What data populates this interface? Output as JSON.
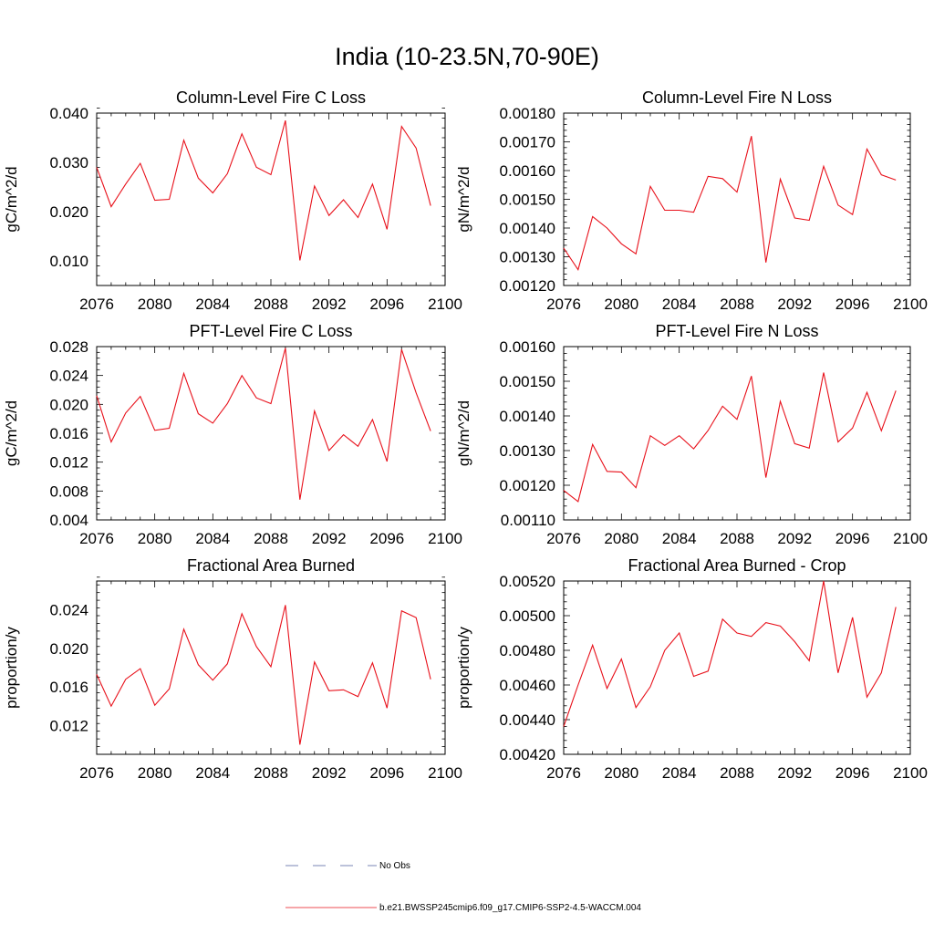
{
  "title": "India (10-23.5N,70-90E)",
  "panels": [
    {
      "title": "Column-Level Fire C Loss",
      "ylabel": "gC/m^2/d",
      "xlim": [
        2076,
        2100
      ],
      "ylim": [
        0.005,
        0.04
      ],
      "xticks": [
        "2076",
        "2080",
        "2084",
        "2088",
        "2092",
        "2096",
        "2100"
      ],
      "yticks": [
        "0.010",
        "0.020",
        "0.030",
        "0.040"
      ],
      "ytick_values": [
        0.01,
        0.02,
        0.03,
        0.04
      ]
    },
    {
      "title": "Column-Level Fire N Loss",
      "ylabel": "gN/m^2/d",
      "xlim": [
        2076,
        2100
      ],
      "ylim": [
        0.0012,
        0.0018
      ],
      "xticks": [
        "2076",
        "2080",
        "2084",
        "2088",
        "2092",
        "2096",
        "2100"
      ],
      "yticks": [
        "0.00120",
        "0.00130",
        "0.00140",
        "0.00150",
        "0.00160",
        "0.00170",
        "0.00180"
      ],
      "ytick_values": [
        0.0012,
        0.0013,
        0.0014,
        0.0015,
        0.0016,
        0.0017,
        0.0018
      ]
    },
    {
      "title": "PFT-Level Fire C Loss",
      "ylabel": "gC/m^2/d",
      "xlim": [
        2076,
        2100
      ],
      "ylim": [
        0.004,
        0.028
      ],
      "xticks": [
        "2076",
        "2080",
        "2084",
        "2088",
        "2092",
        "2096",
        "2100"
      ],
      "yticks": [
        "0.004",
        "0.008",
        "0.012",
        "0.016",
        "0.020",
        "0.024",
        "0.028"
      ],
      "ytick_values": [
        0.004,
        0.008,
        0.012,
        0.016,
        0.02,
        0.024,
        0.028
      ]
    },
    {
      "title": "PFT-Level Fire N Loss",
      "ylabel": "gN/m^2/d",
      "xlim": [
        2076,
        2100
      ],
      "ylim": [
        0.0011,
        0.0016
      ],
      "xticks": [
        "2076",
        "2080",
        "2084",
        "2088",
        "2092",
        "2096",
        "2100"
      ],
      "yticks": [
        "0.00110",
        "0.00120",
        "0.00130",
        "0.00140",
        "0.00150",
        "0.00160"
      ],
      "ytick_values": [
        0.0011,
        0.0012,
        0.0013,
        0.0014,
        0.0015,
        0.0016
      ]
    },
    {
      "title": "Fractional Area Burned",
      "ylabel": "proportion/y",
      "xlim": [
        2076,
        2100
      ],
      "ylim": [
        0.009,
        0.027
      ],
      "xticks": [
        "2076",
        "2080",
        "2084",
        "2088",
        "2092",
        "2096",
        "2100"
      ],
      "yticks": [
        "0.012",
        "0.016",
        "0.020",
        "0.024"
      ],
      "ytick_values": [
        0.012,
        0.016,
        0.02,
        0.024
      ]
    },
    {
      "title": "Fractional Area Burned - Crop",
      "ylabel": "proportion/y",
      "xlim": [
        2076,
        2100
      ],
      "ylim": [
        0.0042,
        0.0052
      ],
      "xticks": [
        "2076",
        "2080",
        "2084",
        "2088",
        "2092",
        "2096",
        "2100"
      ],
      "yticks": [
        "0.00420",
        "0.00440",
        "0.00460",
        "0.00480",
        "0.00500",
        "0.00520"
      ],
      "ytick_values": [
        0.0042,
        0.0044,
        0.0046,
        0.0048,
        0.005,
        0.0052
      ]
    }
  ],
  "legend": {
    "obs_label": "No Obs",
    "model_label": "b.e21.BWSSP245cmip6.f09_g17.CMIP6-SSP2-4.5-WACCM.004"
  },
  "colors": {
    "model": "#e8101a",
    "obs": "#4f5f9f",
    "axis": "#000000"
  },
  "chart_data": [
    {
      "type": "line",
      "title": "Column-Level Fire C Loss",
      "ylabel": "gC/m^2/d",
      "x": [
        2076,
        2077,
        2078,
        2079,
        2080,
        2081,
        2082,
        2083,
        2084,
        2085,
        2086,
        2087,
        2088,
        2089,
        2090,
        2091,
        2092,
        2093,
        2094,
        2095,
        2096,
        2097,
        2098,
        2099
      ],
      "series": [
        {
          "name": "b.e21.BWSSP245cmip6.f09_g17.CMIP6-SSP2-4.5-WACCM.004",
          "values": [
            0.029,
            0.021,
            0.0256,
            0.0298,
            0.0223,
            0.0225,
            0.0345,
            0.0268,
            0.0238,
            0.0277,
            0.0358,
            0.029,
            0.0275,
            0.0385,
            0.0101,
            0.0252,
            0.0192,
            0.0224,
            0.0188,
            0.0256,
            0.0164,
            0.0373,
            0.0329,
            0.0212
          ]
        }
      ],
      "xlim": [
        2076,
        2100
      ],
      "ylim": [
        0.005,
        0.04
      ]
    },
    {
      "type": "line",
      "title": "Column-Level Fire N Loss",
      "ylabel": "gN/m^2/d",
      "x": [
        2076,
        2077,
        2078,
        2079,
        2080,
        2081,
        2082,
        2083,
        2084,
        2085,
        2086,
        2087,
        2088,
        2089,
        2090,
        2091,
        2092,
        2093,
        2094,
        2095,
        2096,
        2097,
        2098,
        2099
      ],
      "series": [
        {
          "name": "b.e21.BWSSP245cmip6.f09_g17.CMIP6-SSP2-4.5-WACCM.004",
          "values": [
            0.00133,
            0.001255,
            0.00144,
            0.0014,
            0.001345,
            0.00131,
            0.001545,
            0.001462,
            0.001462,
            0.001455,
            0.00158,
            0.001572,
            0.001525,
            0.00172,
            0.00128,
            0.00157,
            0.001435,
            0.001427,
            0.001615,
            0.00148,
            0.001447,
            0.001675,
            0.001585,
            0.001567
          ]
        }
      ],
      "xlim": [
        2076,
        2100
      ],
      "ylim": [
        0.0012,
        0.0018
      ]
    },
    {
      "type": "line",
      "title": "PFT-Level Fire C Loss",
      "ylabel": "gC/m^2/d",
      "x": [
        2076,
        2077,
        2078,
        2079,
        2080,
        2081,
        2082,
        2083,
        2084,
        2085,
        2086,
        2087,
        2088,
        2089,
        2090,
        2091,
        2092,
        2093,
        2094,
        2095,
        2096,
        2097,
        2098,
        2099
      ],
      "series": [
        {
          "name": "b.e21.BWSSP245cmip6.f09_g17.CMIP6-SSP2-4.5-WACCM.004",
          "values": [
            0.0212,
            0.0148,
            0.0188,
            0.0211,
            0.0164,
            0.0167,
            0.0243,
            0.0187,
            0.0174,
            0.0201,
            0.024,
            0.0209,
            0.0201,
            0.0278,
            0.0068,
            0.0191,
            0.0136,
            0.0158,
            0.0142,
            0.0179,
            0.0121,
            0.0276,
            0.0216,
            0.0163
          ]
        }
      ],
      "xlim": [
        2076,
        2100
      ],
      "ylim": [
        0.004,
        0.028
      ]
    },
    {
      "type": "line",
      "title": "PFT-Level Fire N Loss",
      "ylabel": "gN/m^2/d",
      "x": [
        2076,
        2077,
        2078,
        2079,
        2080,
        2081,
        2082,
        2083,
        2084,
        2085,
        2086,
        2087,
        2088,
        2089,
        2090,
        2091,
        2092,
        2093,
        2094,
        2095,
        2096,
        2097,
        2098,
        2099
      ],
      "series": [
        {
          "name": "b.e21.BWSSP245cmip6.f09_g17.CMIP6-SSP2-4.5-WACCM.004",
          "values": [
            0.001185,
            0.001153,
            0.001318,
            0.00124,
            0.001238,
            0.001193,
            0.001343,
            0.001315,
            0.001343,
            0.001305,
            0.001358,
            0.001428,
            0.00139,
            0.001515,
            0.001222,
            0.001442,
            0.00132,
            0.001307,
            0.001525,
            0.001325,
            0.001365,
            0.001468,
            0.001357,
            0.001473
          ]
        }
      ],
      "xlim": [
        2076,
        2100
      ],
      "ylim": [
        0.0011,
        0.0016
      ]
    },
    {
      "type": "line",
      "title": "Fractional Area Burned",
      "ylabel": "proportion/y",
      "x": [
        2076,
        2077,
        2078,
        2079,
        2080,
        2081,
        2082,
        2083,
        2084,
        2085,
        2086,
        2087,
        2088,
        2089,
        2090,
        2091,
        2092,
        2093,
        2094,
        2095,
        2096,
        2097,
        2098,
        2099
      ],
      "series": [
        {
          "name": "b.e21.BWSSP245cmip6.f09_g17.CMIP6-SSP2-4.5-WACCM.004",
          "values": [
            0.0173,
            0.014,
            0.0168,
            0.0179,
            0.0141,
            0.0158,
            0.022,
            0.0183,
            0.0167,
            0.0184,
            0.0236,
            0.0202,
            0.0181,
            0.0245,
            0.01,
            0.0186,
            0.0156,
            0.0157,
            0.015,
            0.0185,
            0.0138,
            0.0239,
            0.0232,
            0.0168
          ]
        }
      ],
      "xlim": [
        2076,
        2100
      ],
      "ylim": [
        0.009,
        0.027
      ]
    },
    {
      "type": "line",
      "title": "Fractional Area Burned - Crop",
      "ylabel": "proportion/y",
      "x": [
        2076,
        2077,
        2078,
        2079,
        2080,
        2081,
        2082,
        2083,
        2084,
        2085,
        2086,
        2087,
        2088,
        2089,
        2090,
        2091,
        2092,
        2093,
        2094,
        2095,
        2096,
        2097,
        2098,
        2099
      ],
      "series": [
        {
          "name": "b.e21.BWSSP245cmip6.f09_g17.CMIP6-SSP2-4.5-WACCM.004",
          "values": [
            0.00436,
            0.0046,
            0.00483,
            0.00458,
            0.00475,
            0.00447,
            0.00459,
            0.0048,
            0.0049,
            0.00465,
            0.00468,
            0.00498,
            0.0049,
            0.00488,
            0.00496,
            0.00494,
            0.00485,
            0.00474,
            0.0052,
            0.00467,
            0.00499,
            0.00453,
            0.00467,
            0.00505
          ]
        }
      ],
      "xlim": [
        2076,
        2100
      ],
      "ylim": [
        0.0042,
        0.0052
      ]
    }
  ]
}
